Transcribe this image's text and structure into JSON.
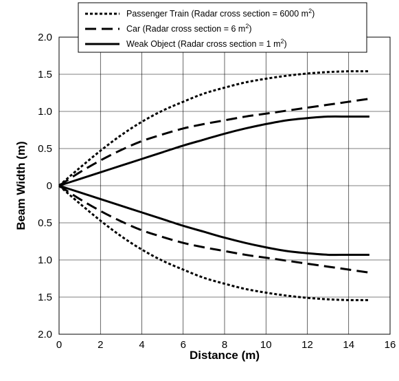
{
  "chart_data": {
    "type": "line",
    "xlabel": "Distance (m)",
    "ylabel": "Beam Width (m)",
    "xlim": [
      0,
      16
    ],
    "ylim": [
      -2.0,
      2.0
    ],
    "x_ticks": [
      "0",
      "2",
      "4",
      "6",
      "8",
      "10",
      "12",
      "14",
      "16"
    ],
    "y_ticks": [
      {
        "value": 2.0,
        "label": "2.0"
      },
      {
        "value": 1.5,
        "label": "1.5"
      },
      {
        "value": 1.0,
        "label": "1.0"
      },
      {
        "value": 0.5,
        "label": "0.5"
      },
      {
        "value": 0,
        "label": "0"
      },
      {
        "value": -0.5,
        "label": "0.5"
      },
      {
        "value": -1.0,
        "label": "1.0"
      },
      {
        "value": -1.5,
        "label": "1.5"
      },
      {
        "value": -2.0,
        "label": "2.0"
      }
    ],
    "grid": true,
    "legend_position": "top-right",
    "series": [
      {
        "name": "Passenger Train (Radar cross section = 6000 m",
        "name_sup": "2",
        "name_suffix": ")",
        "style": "dotted",
        "x": [
          0,
          1,
          2,
          3,
          4,
          5,
          6,
          7,
          8,
          9,
          10,
          11,
          12,
          13,
          14,
          15
        ],
        "upper": [
          0,
          0.24,
          0.47,
          0.68,
          0.86,
          1.01,
          1.13,
          1.24,
          1.32,
          1.39,
          1.44,
          1.48,
          1.51,
          1.53,
          1.54,
          1.54
        ],
        "lower": [
          0,
          -0.24,
          -0.47,
          -0.68,
          -0.86,
          -1.01,
          -1.13,
          -1.24,
          -1.32,
          -1.39,
          -1.44,
          -1.48,
          -1.51,
          -1.53,
          -1.54,
          -1.54
        ]
      },
      {
        "name": "Car (Radar cross section = 6 m",
        "name_sup": "2",
        "name_suffix": ")",
        "style": "dashed",
        "x": [
          0,
          1,
          2,
          3,
          4,
          5,
          6,
          7,
          8,
          9,
          10,
          11,
          12,
          13,
          14,
          15
        ],
        "upper": [
          0,
          0.18,
          0.34,
          0.48,
          0.6,
          0.69,
          0.77,
          0.83,
          0.88,
          0.93,
          0.97,
          1.01,
          1.05,
          1.09,
          1.13,
          1.17
        ],
        "lower": [
          0,
          -0.18,
          -0.34,
          -0.48,
          -0.6,
          -0.69,
          -0.77,
          -0.83,
          -0.88,
          -0.93,
          -0.97,
          -1.01,
          -1.05,
          -1.09,
          -1.13,
          -1.17
        ]
      },
      {
        "name": "Weak Object (Radar cross section = 1 m",
        "name_sup": "2",
        "name_suffix": ")",
        "style": "solid",
        "x": [
          0,
          1,
          2,
          3,
          4,
          5,
          6,
          7,
          8,
          9,
          10,
          11,
          12,
          13,
          14,
          15
        ],
        "upper": [
          0,
          0.09,
          0.18,
          0.27,
          0.36,
          0.45,
          0.54,
          0.62,
          0.7,
          0.77,
          0.83,
          0.88,
          0.91,
          0.93,
          0.93,
          0.93
        ],
        "lower": [
          0,
          -0.09,
          -0.18,
          -0.27,
          -0.36,
          -0.45,
          -0.54,
          -0.62,
          -0.7,
          -0.77,
          -0.83,
          -0.88,
          -0.91,
          -0.93,
          -0.93,
          -0.93
        ]
      }
    ]
  }
}
